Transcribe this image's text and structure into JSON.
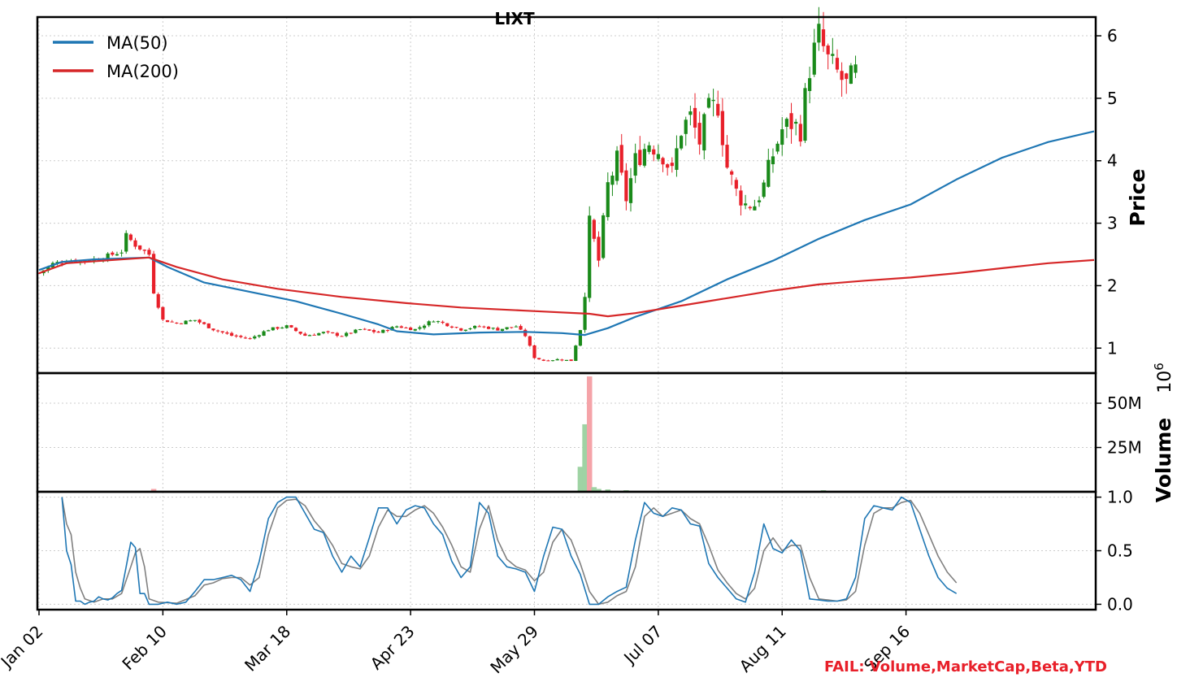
{
  "chart_data": {
    "type": "candlestick",
    "title": "LIXT",
    "colors": {
      "up": "#1a8a1a",
      "down": "#e8202a",
      "vol_up": "#9fd3a4",
      "vol_down": "#f5a3a8",
      "ma50": "#1f77b4",
      "ma200": "#d62728",
      "stoch_k": "#1f77b4",
      "stoch_d": "#808080",
      "grid": "#cccccc",
      "fail_text": "#e8202a"
    },
    "x_ticks": [
      "Jan 02",
      "Feb 10",
      "Mar 18",
      "Apr 23",
      "May 29",
      "Jul 07",
      "Aug 11",
      "Sep 16"
    ],
    "legend": [
      "MA(50)",
      "MA(200)"
    ],
    "price_panel": {
      "ylabel": "Price",
      "yticks": [
        1,
        2,
        3,
        4,
        5,
        6
      ],
      "ylim": [
        0.6,
        6.3
      ],
      "grid": true,
      "anchors": [
        [
          0,
          2.2
        ],
        [
          3,
          2.35
        ],
        [
          6,
          2.4
        ],
        [
          10,
          2.4
        ],
        [
          14,
          2.45
        ],
        [
          18,
          2.55
        ],
        [
          19,
          2.8
        ],
        [
          21,
          2.65
        ],
        [
          24,
          2.5
        ],
        [
          25,
          1.9
        ],
        [
          27,
          1.45
        ],
        [
          30,
          1.4
        ],
        [
          34,
          1.45
        ],
        [
          38,
          1.3
        ],
        [
          42,
          1.2
        ],
        [
          46,
          1.15
        ],
        [
          50,
          1.3
        ],
        [
          54,
          1.35
        ],
        [
          58,
          1.2
        ],
        [
          62,
          1.25
        ],
        [
          66,
          1.2
        ],
        [
          70,
          1.3
        ],
        [
          74,
          1.25
        ],
        [
          78,
          1.35
        ],
        [
          82,
          1.3
        ],
        [
          86,
          1.45
        ],
        [
          88,
          1.4
        ],
        [
          92,
          1.3
        ],
        [
          96,
          1.35
        ],
        [
          100,
          1.3
        ],
        [
          104,
          1.35
        ],
        [
          106,
          1.2
        ],
        [
          108,
          0.85
        ],
        [
          110,
          0.8
        ],
        [
          113,
          0.82
        ],
        [
          116,
          0.8
        ],
        [
          118,
          1.3
        ],
        [
          119,
          1.9
        ],
        [
          120,
          3.0
        ],
        [
          122,
          2.4
        ],
        [
          124,
          3.6
        ],
        [
          126,
          4.0
        ],
        [
          128,
          3.4
        ],
        [
          130,
          4.0
        ],
        [
          133,
          4.3
        ],
        [
          136,
          4.1
        ],
        [
          138,
          3.8
        ],
        [
          140,
          4.5
        ],
        [
          142,
          4.7
        ],
        [
          144,
          4.3
        ],
        [
          146,
          4.8
        ],
        [
          148,
          4.9
        ],
        [
          150,
          3.9
        ],
        [
          152,
          3.5
        ],
        [
          154,
          3.3
        ],
        [
          156,
          3.3
        ],
        [
          158,
          3.6
        ],
        [
          160,
          4.1
        ],
        [
          162,
          4.5
        ],
        [
          164,
          4.6
        ],
        [
          166,
          4.5
        ],
        [
          168,
          5.5
        ],
        [
          170,
          6.0
        ],
        [
          172,
          5.6
        ],
        [
          174,
          5.4
        ],
        [
          176,
          5.2
        ],
        [
          178,
          5.4
        ]
      ],
      "ma50": [
        [
          0,
          2.25
        ],
        [
          5,
          2.38
        ],
        [
          12,
          2.42
        ],
        [
          24,
          2.45
        ],
        [
          28,
          2.3
        ],
        [
          36,
          2.05
        ],
        [
          46,
          1.9
        ],
        [
          56,
          1.75
        ],
        [
          66,
          1.55
        ],
        [
          74,
          1.38
        ],
        [
          78,
          1.27
        ],
        [
          86,
          1.22
        ],
        [
          96,
          1.25
        ],
        [
          106,
          1.26
        ],
        [
          114,
          1.24
        ],
        [
          119,
          1.21
        ],
        [
          124,
          1.32
        ],
        [
          130,
          1.5
        ],
        [
          140,
          1.75
        ],
        [
          150,
          2.1
        ],
        [
          160,
          2.4
        ],
        [
          170,
          2.75
        ],
        [
          180,
          3.05
        ],
        [
          190,
          3.3
        ],
        [
          200,
          3.7
        ],
        [
          210,
          4.05
        ],
        [
          220,
          4.3
        ],
        [
          230,
          4.47
        ]
      ],
      "ma200": [
        [
          0,
          2.2
        ],
        [
          6,
          2.36
        ],
        [
          14,
          2.4
        ],
        [
          24,
          2.45
        ],
        [
          30,
          2.3
        ],
        [
          40,
          2.1
        ],
        [
          52,
          1.95
        ],
        [
          66,
          1.82
        ],
        [
          80,
          1.72
        ],
        [
          92,
          1.65
        ],
        [
          106,
          1.6
        ],
        [
          120,
          1.55
        ],
        [
          124,
          1.51
        ],
        [
          130,
          1.56
        ],
        [
          140,
          1.68
        ],
        [
          150,
          1.8
        ],
        [
          160,
          1.92
        ],
        [
          170,
          2.02
        ],
        [
          180,
          2.08
        ],
        [
          190,
          2.13
        ],
        [
          200,
          2.2
        ],
        [
          210,
          2.28
        ],
        [
          220,
          2.36
        ],
        [
          230,
          2.41
        ]
      ]
    },
    "volume_panel": {
      "ylabel": "Volume",
      "scale_label": "10",
      "scale_exponent": "6",
      "yticks": [
        "25M",
        "50M"
      ],
      "ytick_values": [
        25,
        50
      ],
      "ylim": [
        0,
        67
      ],
      "spikes": [
        [
          25,
          1.5
        ],
        [
          118,
          14
        ],
        [
          119,
          38
        ],
        [
          120,
          65
        ],
        [
          121,
          2.5
        ],
        [
          122,
          1.5
        ],
        [
          124,
          1.2
        ],
        [
          128,
          0.8
        ],
        [
          171,
          0.8
        ]
      ]
    },
    "stoch_panel": {
      "yticks": [
        "0.0",
        "0.5",
        "1.0"
      ],
      "ytick_values": [
        0,
        0.5,
        1
      ],
      "ylim": [
        -0.05,
        1.05
      ],
      "k": [
        [
          5,
          1.0
        ],
        [
          6,
          0.5
        ],
        [
          7,
          0.37
        ],
        [
          8,
          0.03
        ],
        [
          9,
          0.03
        ],
        [
          10,
          0.0
        ],
        [
          11,
          0.02
        ],
        [
          12,
          0.03
        ],
        [
          13,
          0.07
        ],
        [
          14,
          0.05
        ],
        [
          15,
          0.04
        ],
        [
          16,
          0.06
        ],
        [
          17,
          0.1
        ],
        [
          18,
          0.13
        ],
        [
          19,
          0.35
        ],
        [
          20,
          0.58
        ],
        [
          21,
          0.53
        ],
        [
          22,
          0.1
        ],
        [
          23,
          0.1
        ],
        [
          24,
          0.0
        ],
        [
          26,
          0.0
        ],
        [
          28,
          0.02
        ],
        [
          30,
          0.0
        ],
        [
          32,
          0.02
        ],
        [
          34,
          0.12
        ],
        [
          36,
          0.23
        ],
        [
          38,
          0.23
        ],
        [
          40,
          0.25
        ],
        [
          42,
          0.27
        ],
        [
          44,
          0.23
        ],
        [
          46,
          0.12
        ],
        [
          48,
          0.4
        ],
        [
          50,
          0.8
        ],
        [
          52,
          0.95
        ],
        [
          54,
          1.0
        ],
        [
          56,
          1.0
        ],
        [
          58,
          0.85
        ],
        [
          60,
          0.7
        ],
        [
          62,
          0.67
        ],
        [
          64,
          0.45
        ],
        [
          66,
          0.3
        ],
        [
          68,
          0.45
        ],
        [
          70,
          0.35
        ],
        [
          72,
          0.62
        ],
        [
          74,
          0.9
        ],
        [
          76,
          0.9
        ],
        [
          78,
          0.75
        ],
        [
          80,
          0.88
        ],
        [
          82,
          0.92
        ],
        [
          84,
          0.9
        ],
        [
          86,
          0.75
        ],
        [
          88,
          0.65
        ],
        [
          90,
          0.4
        ],
        [
          92,
          0.25
        ],
        [
          94,
          0.35
        ],
        [
          96,
          0.95
        ],
        [
          98,
          0.85
        ],
        [
          100,
          0.45
        ],
        [
          102,
          0.35
        ],
        [
          104,
          0.33
        ],
        [
          106,
          0.3
        ],
        [
          108,
          0.12
        ],
        [
          110,
          0.45
        ],
        [
          112,
          0.72
        ],
        [
          114,
          0.7
        ],
        [
          116,
          0.45
        ],
        [
          118,
          0.28
        ],
        [
          120,
          0.0
        ],
        [
          122,
          0.0
        ],
        [
          124,
          0.07
        ],
        [
          126,
          0.12
        ],
        [
          128,
          0.16
        ],
        [
          130,
          0.6
        ],
        [
          132,
          0.95
        ],
        [
          134,
          0.85
        ],
        [
          136,
          0.82
        ],
        [
          138,
          0.9
        ],
        [
          140,
          0.88
        ],
        [
          142,
          0.75
        ],
        [
          144,
          0.73
        ],
        [
          146,
          0.38
        ],
        [
          148,
          0.25
        ],
        [
          150,
          0.15
        ],
        [
          152,
          0.05
        ],
        [
          154,
          0.02
        ],
        [
          156,
          0.3
        ],
        [
          158,
          0.75
        ],
        [
          160,
          0.52
        ],
        [
          162,
          0.48
        ],
        [
          164,
          0.6
        ],
        [
          166,
          0.5
        ],
        [
          168,
          0.05
        ],
        [
          170,
          0.04
        ],
        [
          172,
          0.03
        ],
        [
          174,
          0.03
        ],
        [
          176,
          0.05
        ],
        [
          178,
          0.25
        ],
        [
          180,
          0.8
        ],
        [
          182,
          0.92
        ],
        [
          184,
          0.9
        ],
        [
          186,
          0.88
        ],
        [
          188,
          1.0
        ],
        [
          190,
          0.95
        ],
        [
          192,
          0.7
        ],
        [
          194,
          0.45
        ],
        [
          196,
          0.25
        ],
        [
          198,
          0.15
        ],
        [
          200,
          0.1
        ]
      ],
      "d": [
        [
          5,
          1.0
        ],
        [
          6,
          0.75
        ],
        [
          7,
          0.65
        ],
        [
          8,
          0.3
        ],
        [
          9,
          0.15
        ],
        [
          10,
          0.05
        ],
        [
          12,
          0.02
        ],
        [
          14,
          0.05
        ],
        [
          16,
          0.05
        ],
        [
          18,
          0.1
        ],
        [
          20,
          0.35
        ],
        [
          21,
          0.48
        ],
        [
          22,
          0.52
        ],
        [
          23,
          0.35
        ],
        [
          24,
          0.05
        ],
        [
          26,
          0.02
        ],
        [
          30,
          0.01
        ],
        [
          34,
          0.08
        ],
        [
          36,
          0.18
        ],
        [
          38,
          0.2
        ],
        [
          40,
          0.24
        ],
        [
          42,
          0.25
        ],
        [
          44,
          0.25
        ],
        [
          46,
          0.18
        ],
        [
          48,
          0.25
        ],
        [
          50,
          0.65
        ],
        [
          52,
          0.9
        ],
        [
          54,
          0.97
        ],
        [
          56,
          0.98
        ],
        [
          58,
          0.92
        ],
        [
          60,
          0.78
        ],
        [
          62,
          0.68
        ],
        [
          64,
          0.55
        ],
        [
          66,
          0.38
        ],
        [
          68,
          0.35
        ],
        [
          70,
          0.33
        ],
        [
          72,
          0.45
        ],
        [
          74,
          0.72
        ],
        [
          76,
          0.88
        ],
        [
          78,
          0.82
        ],
        [
          80,
          0.82
        ],
        [
          82,
          0.88
        ],
        [
          84,
          0.92
        ],
        [
          86,
          0.85
        ],
        [
          88,
          0.72
        ],
        [
          90,
          0.55
        ],
        [
          92,
          0.35
        ],
        [
          94,
          0.3
        ],
        [
          96,
          0.7
        ],
        [
          98,
          0.92
        ],
        [
          100,
          0.6
        ],
        [
          102,
          0.42
        ],
        [
          104,
          0.35
        ],
        [
          106,
          0.32
        ],
        [
          108,
          0.22
        ],
        [
          110,
          0.3
        ],
        [
          112,
          0.58
        ],
        [
          114,
          0.7
        ],
        [
          116,
          0.6
        ],
        [
          118,
          0.38
        ],
        [
          120,
          0.12
        ],
        [
          122,
          0.0
        ],
        [
          124,
          0.02
        ],
        [
          126,
          0.08
        ],
        [
          128,
          0.12
        ],
        [
          130,
          0.35
        ],
        [
          132,
          0.82
        ],
        [
          134,
          0.9
        ],
        [
          136,
          0.82
        ],
        [
          138,
          0.85
        ],
        [
          140,
          0.88
        ],
        [
          142,
          0.8
        ],
        [
          144,
          0.75
        ],
        [
          146,
          0.55
        ],
        [
          148,
          0.32
        ],
        [
          150,
          0.2
        ],
        [
          152,
          0.1
        ],
        [
          154,
          0.05
        ],
        [
          156,
          0.15
        ],
        [
          158,
          0.5
        ],
        [
          160,
          0.62
        ],
        [
          162,
          0.5
        ],
        [
          164,
          0.55
        ],
        [
          166,
          0.55
        ],
        [
          168,
          0.25
        ],
        [
          170,
          0.05
        ],
        [
          172,
          0.04
        ],
        [
          174,
          0.03
        ],
        [
          176,
          0.04
        ],
        [
          178,
          0.12
        ],
        [
          180,
          0.55
        ],
        [
          182,
          0.85
        ],
        [
          184,
          0.9
        ],
        [
          186,
          0.9
        ],
        [
          188,
          0.95
        ],
        [
          190,
          0.97
        ],
        [
          192,
          0.85
        ],
        [
          194,
          0.65
        ],
        [
          196,
          0.45
        ],
        [
          198,
          0.3
        ],
        [
          200,
          0.2
        ]
      ]
    }
  },
  "footer": {
    "fail_text": "FAIL: Volume,MarketCap,Beta,YTD"
  }
}
